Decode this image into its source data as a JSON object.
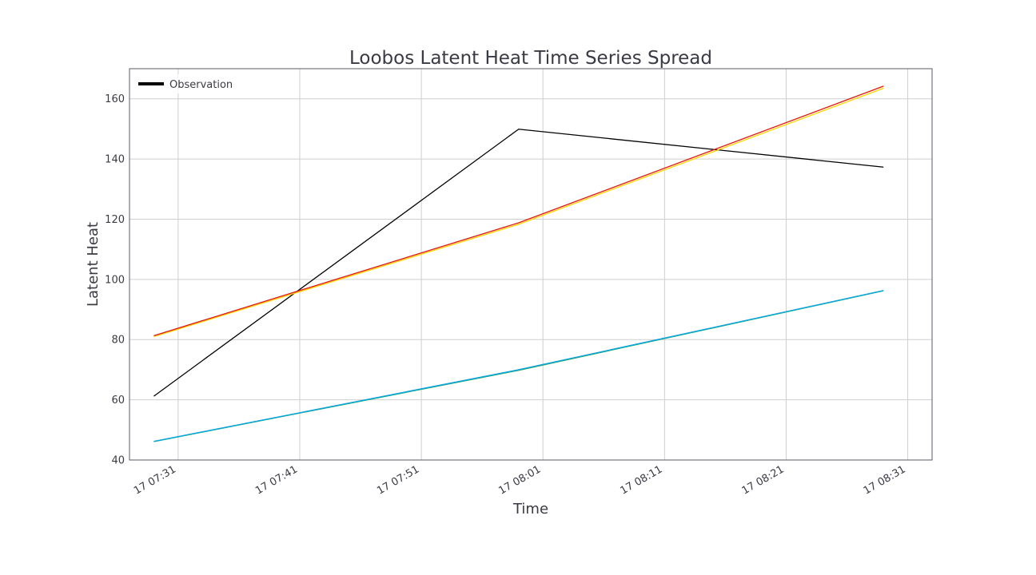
{
  "chart_data": {
    "type": "line",
    "title": "Loobos Latent Heat Time Series Spread",
    "xlabel": "Time",
    "ylabel": "Latent Heat",
    "x": [
      "17 07:29",
      "17 07:59",
      "17 08:29"
    ],
    "xlim": [
      "17 07:27",
      "17 08:33"
    ],
    "ylim": [
      40,
      170
    ],
    "x_ticks": [
      "17 07:31",
      "17 07:41",
      "17 07:51",
      "17 08:01",
      "17 08:11",
      "17 08:21",
      "17 08:31"
    ],
    "y_ticks": [
      40,
      60,
      80,
      100,
      120,
      140,
      160
    ],
    "grid": true,
    "legend": {
      "position": "top-left",
      "entries": [
        "Observation"
      ]
    },
    "series": [
      {
        "name": "Observation",
        "color": "#000000",
        "values": [
          61.2,
          149.9,
          137.3
        ]
      },
      {
        "color": "#ffd400",
        "values": [
          81.0,
          118.3,
          163.5
        ]
      },
      {
        "color": "#e8160c",
        "values": [
          81.3,
          118.8,
          164.2
        ]
      },
      {
        "color": "#2f9e5f",
        "values": [
          46.1,
          69.8,
          96.2
        ]
      },
      {
        "color": "#00a8e8",
        "values": [
          46.2,
          70.0,
          96.3
        ]
      }
    ]
  }
}
